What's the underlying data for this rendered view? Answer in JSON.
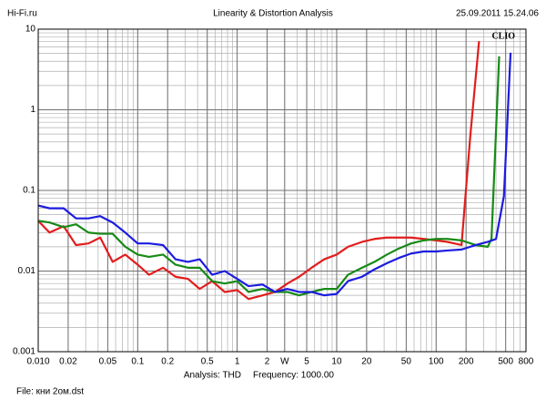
{
  "chart_data": {
    "type": "line",
    "title": "Linearity & Distortion Analysis",
    "source_label": "Hi-Fi.ru",
    "timestamp": "25.09.2011 15.24.06",
    "annotation": "CLIO",
    "analysis": "Analysis: THD",
    "frequency": "Frequency: 1000.00",
    "file": "File: кни 2ом.dst",
    "xscale": "log",
    "yscale": "log",
    "grid": true,
    "minor_grid": true,
    "xlim": [
      0.01,
      800
    ],
    "ylim": [
      0.001,
      10
    ],
    "xticks": [
      {
        "value": 0.01,
        "label": "0.010"
      },
      0.02,
      0.05,
      0.1,
      0.2,
      0.5,
      1,
      2,
      {
        "value": 3,
        "label": "W"
      },
      5,
      10,
      20,
      50,
      100,
      200,
      500,
      800
    ],
    "yticks": [
      0.001,
      0.01,
      0.1,
      1,
      10
    ],
    "series": [
      {
        "color": "#e21d1d",
        "x": [
          0.01,
          0.013,
          0.018,
          0.024,
          0.032,
          0.042,
          0.056,
          0.075,
          0.1,
          0.13,
          0.18,
          0.24,
          0.32,
          0.42,
          0.56,
          0.75,
          1,
          1.3,
          1.8,
          2.4,
          3.2,
          4.2,
          5.6,
          7.5,
          10,
          13,
          18,
          24,
          32,
          42,
          56,
          75,
          100,
          130,
          180,
          220,
          270
        ],
        "values": [
          0.042,
          0.03,
          0.036,
          0.021,
          0.022,
          0.026,
          0.013,
          0.016,
          0.012,
          0.009,
          0.011,
          0.0085,
          0.008,
          0.006,
          0.0075,
          0.0055,
          0.0058,
          0.0045,
          0.005,
          0.0055,
          0.007,
          0.0085,
          0.011,
          0.014,
          0.016,
          0.02,
          0.023,
          0.025,
          0.026,
          0.026,
          0.026,
          0.025,
          0.024,
          0.023,
          0.021,
          0.46,
          7.1
        ]
      },
      {
        "color": "#178a17",
        "x": [
          0.01,
          0.013,
          0.018,
          0.024,
          0.032,
          0.042,
          0.056,
          0.075,
          0.1,
          0.13,
          0.18,
          0.24,
          0.32,
          0.42,
          0.56,
          0.75,
          1,
          1.3,
          1.8,
          2.4,
          3.2,
          4.2,
          5.6,
          7.5,
          10,
          13,
          18,
          24,
          32,
          42,
          56,
          75,
          100,
          130,
          180,
          250,
          330,
          360,
          430
        ],
        "values": [
          0.042,
          0.04,
          0.035,
          0.038,
          0.03,
          0.029,
          0.029,
          0.02,
          0.016,
          0.015,
          0.016,
          0.012,
          0.011,
          0.011,
          0.0075,
          0.007,
          0.0075,
          0.0055,
          0.006,
          0.0055,
          0.0055,
          0.005,
          0.0055,
          0.006,
          0.006,
          0.009,
          0.011,
          0.013,
          0.016,
          0.019,
          0.022,
          0.024,
          0.025,
          0.025,
          0.024,
          0.021,
          0.02,
          0.025,
          4.6
        ]
      },
      {
        "color": "#1c1ce0",
        "x": [
          0.01,
          0.013,
          0.018,
          0.024,
          0.032,
          0.042,
          0.056,
          0.075,
          0.1,
          0.13,
          0.18,
          0.24,
          0.32,
          0.42,
          0.56,
          0.75,
          1,
          1.3,
          1.8,
          2.4,
          3.2,
          4.2,
          5.6,
          7.5,
          10,
          13,
          18,
          24,
          32,
          42,
          56,
          75,
          100,
          130,
          180,
          250,
          330,
          400,
          480,
          560
        ],
        "values": [
          0.065,
          0.06,
          0.06,
          0.045,
          0.045,
          0.048,
          0.04,
          0.03,
          0.022,
          0.022,
          0.021,
          0.014,
          0.013,
          0.014,
          0.009,
          0.01,
          0.008,
          0.0065,
          0.0068,
          0.0055,
          0.006,
          0.0055,
          0.0055,
          0.005,
          0.0052,
          0.0075,
          0.0085,
          0.0105,
          0.0125,
          0.0145,
          0.0165,
          0.0175,
          0.0175,
          0.018,
          0.0185,
          0.021,
          0.023,
          0.025,
          0.085,
          5.1
        ]
      }
    ]
  }
}
